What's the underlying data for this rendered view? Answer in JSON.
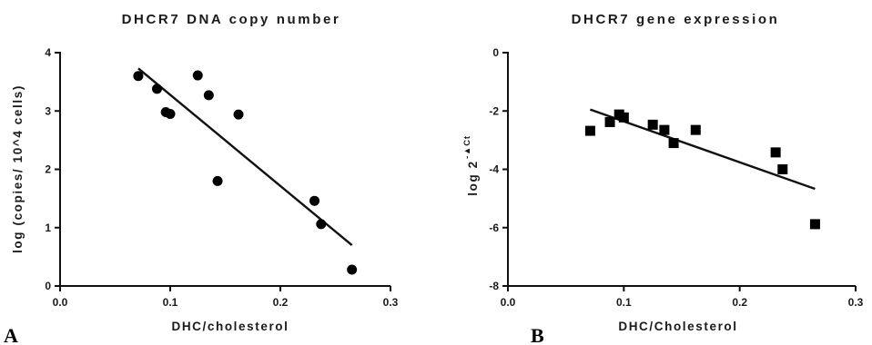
{
  "chart_data": [
    {
      "type": "scatter",
      "panel_label": "A",
      "title": "DHCR7 DNA copy number",
      "xlabel": "DHC/cholesterol",
      "ylabel": "log (copies/ 10^4 cells)",
      "xlim": [
        0.0,
        0.3
      ],
      "ylim": [
        0,
        4
      ],
      "xticks": [
        "0.0",
        "0.1",
        "0.2",
        "0.3"
      ],
      "yticks": [
        "0",
        "1",
        "2",
        "3",
        "4"
      ],
      "marker": "circle",
      "points": [
        {
          "x": 0.071,
          "y": 3.6
        },
        {
          "x": 0.088,
          "y": 3.38
        },
        {
          "x": 0.096,
          "y": 2.98
        },
        {
          "x": 0.1,
          "y": 2.95
        },
        {
          "x": 0.125,
          "y": 3.61
        },
        {
          "x": 0.135,
          "y": 3.27
        },
        {
          "x": 0.143,
          "y": 1.8
        },
        {
          "x": 0.162,
          "y": 2.94
        },
        {
          "x": 0.231,
          "y": 1.46
        },
        {
          "x": 0.237,
          "y": 1.06
        },
        {
          "x": 0.265,
          "y": 0.28
        }
      ],
      "fit_line": {
        "x": [
          0.071,
          0.265
        ],
        "y": [
          3.73,
          0.7
        ]
      },
      "grid": false
    },
    {
      "type": "scatter",
      "panel_label": "B",
      "title": "DHCR7 gene expression",
      "xlabel": "DHC/Cholesterol",
      "ylabel_main": "log 2",
      "ylabel_sup": "-▲Ct",
      "xlim": [
        0.0,
        0.3
      ],
      "ylim": [
        -8,
        0
      ],
      "xticks": [
        "0.0",
        "0.1",
        "0.2",
        "0.3"
      ],
      "yticks": [
        "0",
        "-2",
        "-4",
        "-6",
        "-8"
      ],
      "marker": "square",
      "points": [
        {
          "x": 0.071,
          "y": -2.68
        },
        {
          "x": 0.088,
          "y": -2.38
        },
        {
          "x": 0.096,
          "y": -2.12
        },
        {
          "x": 0.1,
          "y": -2.22
        },
        {
          "x": 0.125,
          "y": -2.47
        },
        {
          "x": 0.135,
          "y": -2.65
        },
        {
          "x": 0.143,
          "y": -3.1
        },
        {
          "x": 0.162,
          "y": -2.65
        },
        {
          "x": 0.231,
          "y": -3.42
        },
        {
          "x": 0.237,
          "y": -4.0
        },
        {
          "x": 0.265,
          "y": -5.88
        }
      ],
      "fit_line": {
        "x": [
          0.071,
          0.265
        ],
        "y": [
          -1.95,
          -4.67
        ]
      },
      "grid": false
    }
  ]
}
